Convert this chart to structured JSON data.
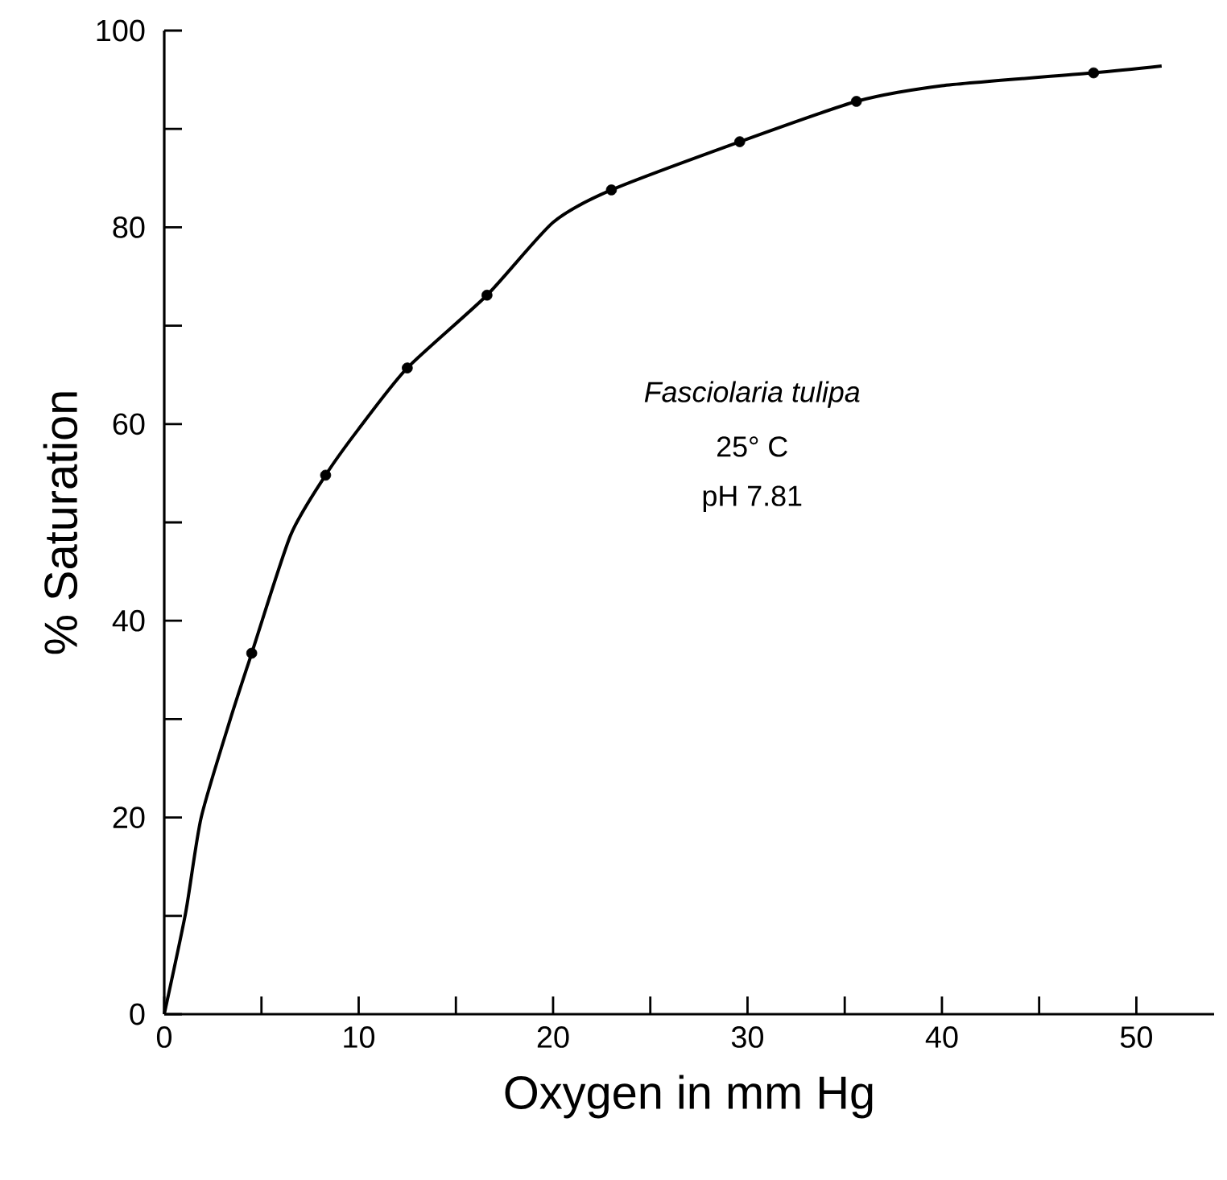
{
  "chart_data": {
    "type": "scatter",
    "xlabel": "Oxygen in mm Hg",
    "ylabel": "% Saturation",
    "annotations": [
      "Fasciolaria tulipa",
      "25° C",
      "pH 7.81"
    ],
    "series": [
      {
        "color": "#000000",
        "marker": "circle",
        "x": [
          4.5,
          8.3,
          12.5,
          16.6,
          23.0,
          29.6,
          35.6,
          47.8
        ],
        "values": [
          36.7,
          54.8,
          65.7,
          73.1,
          83.8,
          88.7,
          92.8,
          95.7
        ]
      },
      {
        "type": "line",
        "color": "#000000",
        "marker": "none",
        "line_style": "solid",
        "x": [
          0,
          1.1,
          1.9,
          3.4,
          4.5,
          6.5,
          8.3,
          10,
          12.5,
          16.6,
          20,
          23.0,
          29.6,
          35.6,
          40,
          47.8,
          51.3
        ],
        "values": [
          0,
          10.3,
          20,
          30,
          36.7,
          48.7,
          54.8,
          59.5,
          65.7,
          73.1,
          80.5,
          83.8,
          88.7,
          92.8,
          94.4,
          95.7,
          96.4
        ]
      }
    ],
    "xlim": [
      0,
      54
    ],
    "ylim": [
      0,
      100
    ],
    "xticks": [
      0,
      {
        "value": 5,
        "label": null
      },
      10,
      {
        "value": 15,
        "label": null
      },
      20,
      {
        "value": 25,
        "label": null
      },
      30,
      {
        "value": 35,
        "label": null
      },
      40,
      {
        "value": 45,
        "label": null
      },
      50
    ],
    "yticks": [
      0,
      {
        "value": 10,
        "label": null
      },
      20,
      {
        "value": 30,
        "label": null
      },
      40,
      {
        "value": 50,
        "label": null
      },
      60,
      {
        "value": 70,
        "label": null
      },
      80,
      {
        "value": 90,
        "label": null
      },
      100
    ],
    "stacked": false
  }
}
